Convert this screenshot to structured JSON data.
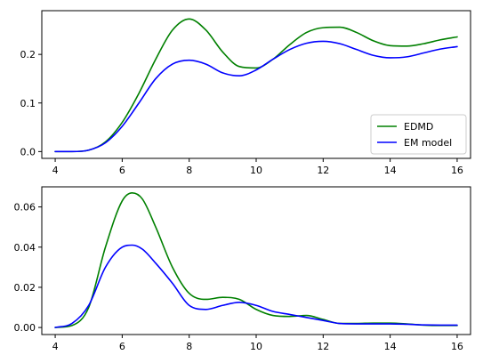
{
  "chart_data": [
    {
      "type": "line",
      "title": "",
      "xlabel": "",
      "ylabel": "",
      "xlim": [
        3.6,
        16.4
      ],
      "ylim": [
        -0.014,
        0.29
      ],
      "xticks": [
        4,
        6,
        8,
        10,
        12,
        14,
        16
      ],
      "yticks": [
        0.0,
        0.1,
        0.2
      ],
      "ytick_format": 1,
      "grid": false,
      "legend": {
        "placement": "lower-right",
        "entries": [
          "EDMD",
          "EM model"
        ]
      },
      "series": [
        {
          "name": "EDMD",
          "color": "#008000",
          "x": [
            4.0,
            4.5,
            5.0,
            5.5,
            6.0,
            6.5,
            7.0,
            7.5,
            8.0,
            8.5,
            9.0,
            9.5,
            10.0,
            10.5,
            11.0,
            11.5,
            12.0,
            12.5,
            13.0,
            13.5,
            14.0,
            14.5,
            15.0,
            15.5,
            16.0
          ],
          "y": [
            0.0,
            0.0,
            0.003,
            0.02,
            0.06,
            0.12,
            0.19,
            0.25,
            0.273,
            0.25,
            0.205,
            0.175,
            0.172,
            0.19,
            0.22,
            0.245,
            0.255,
            0.256,
            0.245,
            0.228,
            0.218,
            0.217,
            0.222,
            0.23,
            0.236
          ]
        },
        {
          "name": "EM model",
          "color": "#0000ff",
          "x": [
            4.0,
            4.5,
            5.0,
            5.5,
            6.0,
            6.5,
            7.0,
            7.5,
            8.0,
            8.5,
            9.0,
            9.5,
            10.0,
            10.5,
            11.0,
            11.5,
            12.0,
            12.5,
            13.0,
            13.5,
            14.0,
            14.5,
            15.0,
            15.5,
            16.0
          ],
          "y": [
            0.0,
            0.0,
            0.003,
            0.018,
            0.052,
            0.1,
            0.15,
            0.18,
            0.188,
            0.18,
            0.162,
            0.156,
            0.168,
            0.19,
            0.21,
            0.223,
            0.227,
            0.222,
            0.21,
            0.198,
            0.193,
            0.195,
            0.203,
            0.211,
            0.216
          ]
        }
      ]
    },
    {
      "type": "line",
      "title": "",
      "xlabel": "",
      "ylabel": "",
      "xlim": [
        3.6,
        16.4
      ],
      "ylim": [
        -0.0035,
        0.07
      ],
      "xticks": [
        4,
        6,
        8,
        10,
        12,
        14,
        16
      ],
      "yticks": [
        0.0,
        0.02,
        0.04,
        0.06
      ],
      "ytick_format": 2,
      "grid": false,
      "series": [
        {
          "name": "EDMD",
          "color": "#008000",
          "x": [
            4.0,
            4.5,
            5.0,
            5.5,
            6.0,
            6.3,
            6.6,
            7.0,
            7.5,
            8.0,
            8.5,
            9.0,
            9.5,
            10.0,
            10.5,
            11.0,
            11.5,
            12.0,
            12.5,
            13.0,
            13.5,
            14.0,
            14.5,
            15.0,
            15.5,
            16.0
          ],
          "y": [
            0.0,
            0.001,
            0.01,
            0.04,
            0.063,
            0.067,
            0.064,
            0.05,
            0.03,
            0.017,
            0.014,
            0.015,
            0.014,
            0.009,
            0.006,
            0.0055,
            0.006,
            0.004,
            0.002,
            0.002,
            0.0022,
            0.0022,
            0.0018,
            0.0012,
            0.001,
            0.001
          ]
        },
        {
          "name": "EM model",
          "color": "#0000ff",
          "x": [
            4.0,
            4.5,
            5.0,
            5.5,
            6.0,
            6.3,
            6.6,
            7.0,
            7.5,
            8.0,
            8.5,
            9.0,
            9.5,
            10.0,
            10.5,
            11.0,
            11.5,
            12.0,
            12.5,
            13.0,
            13.5,
            14.0,
            14.5,
            15.0,
            15.5,
            16.0
          ],
          "y": [
            0.0,
            0.002,
            0.011,
            0.03,
            0.04,
            0.041,
            0.039,
            0.032,
            0.022,
            0.011,
            0.009,
            0.011,
            0.0125,
            0.011,
            0.008,
            0.0065,
            0.005,
            0.0035,
            0.002,
            0.0018,
            0.0018,
            0.0018,
            0.0016,
            0.0013,
            0.0012,
            0.0012
          ]
        }
      ]
    }
  ]
}
